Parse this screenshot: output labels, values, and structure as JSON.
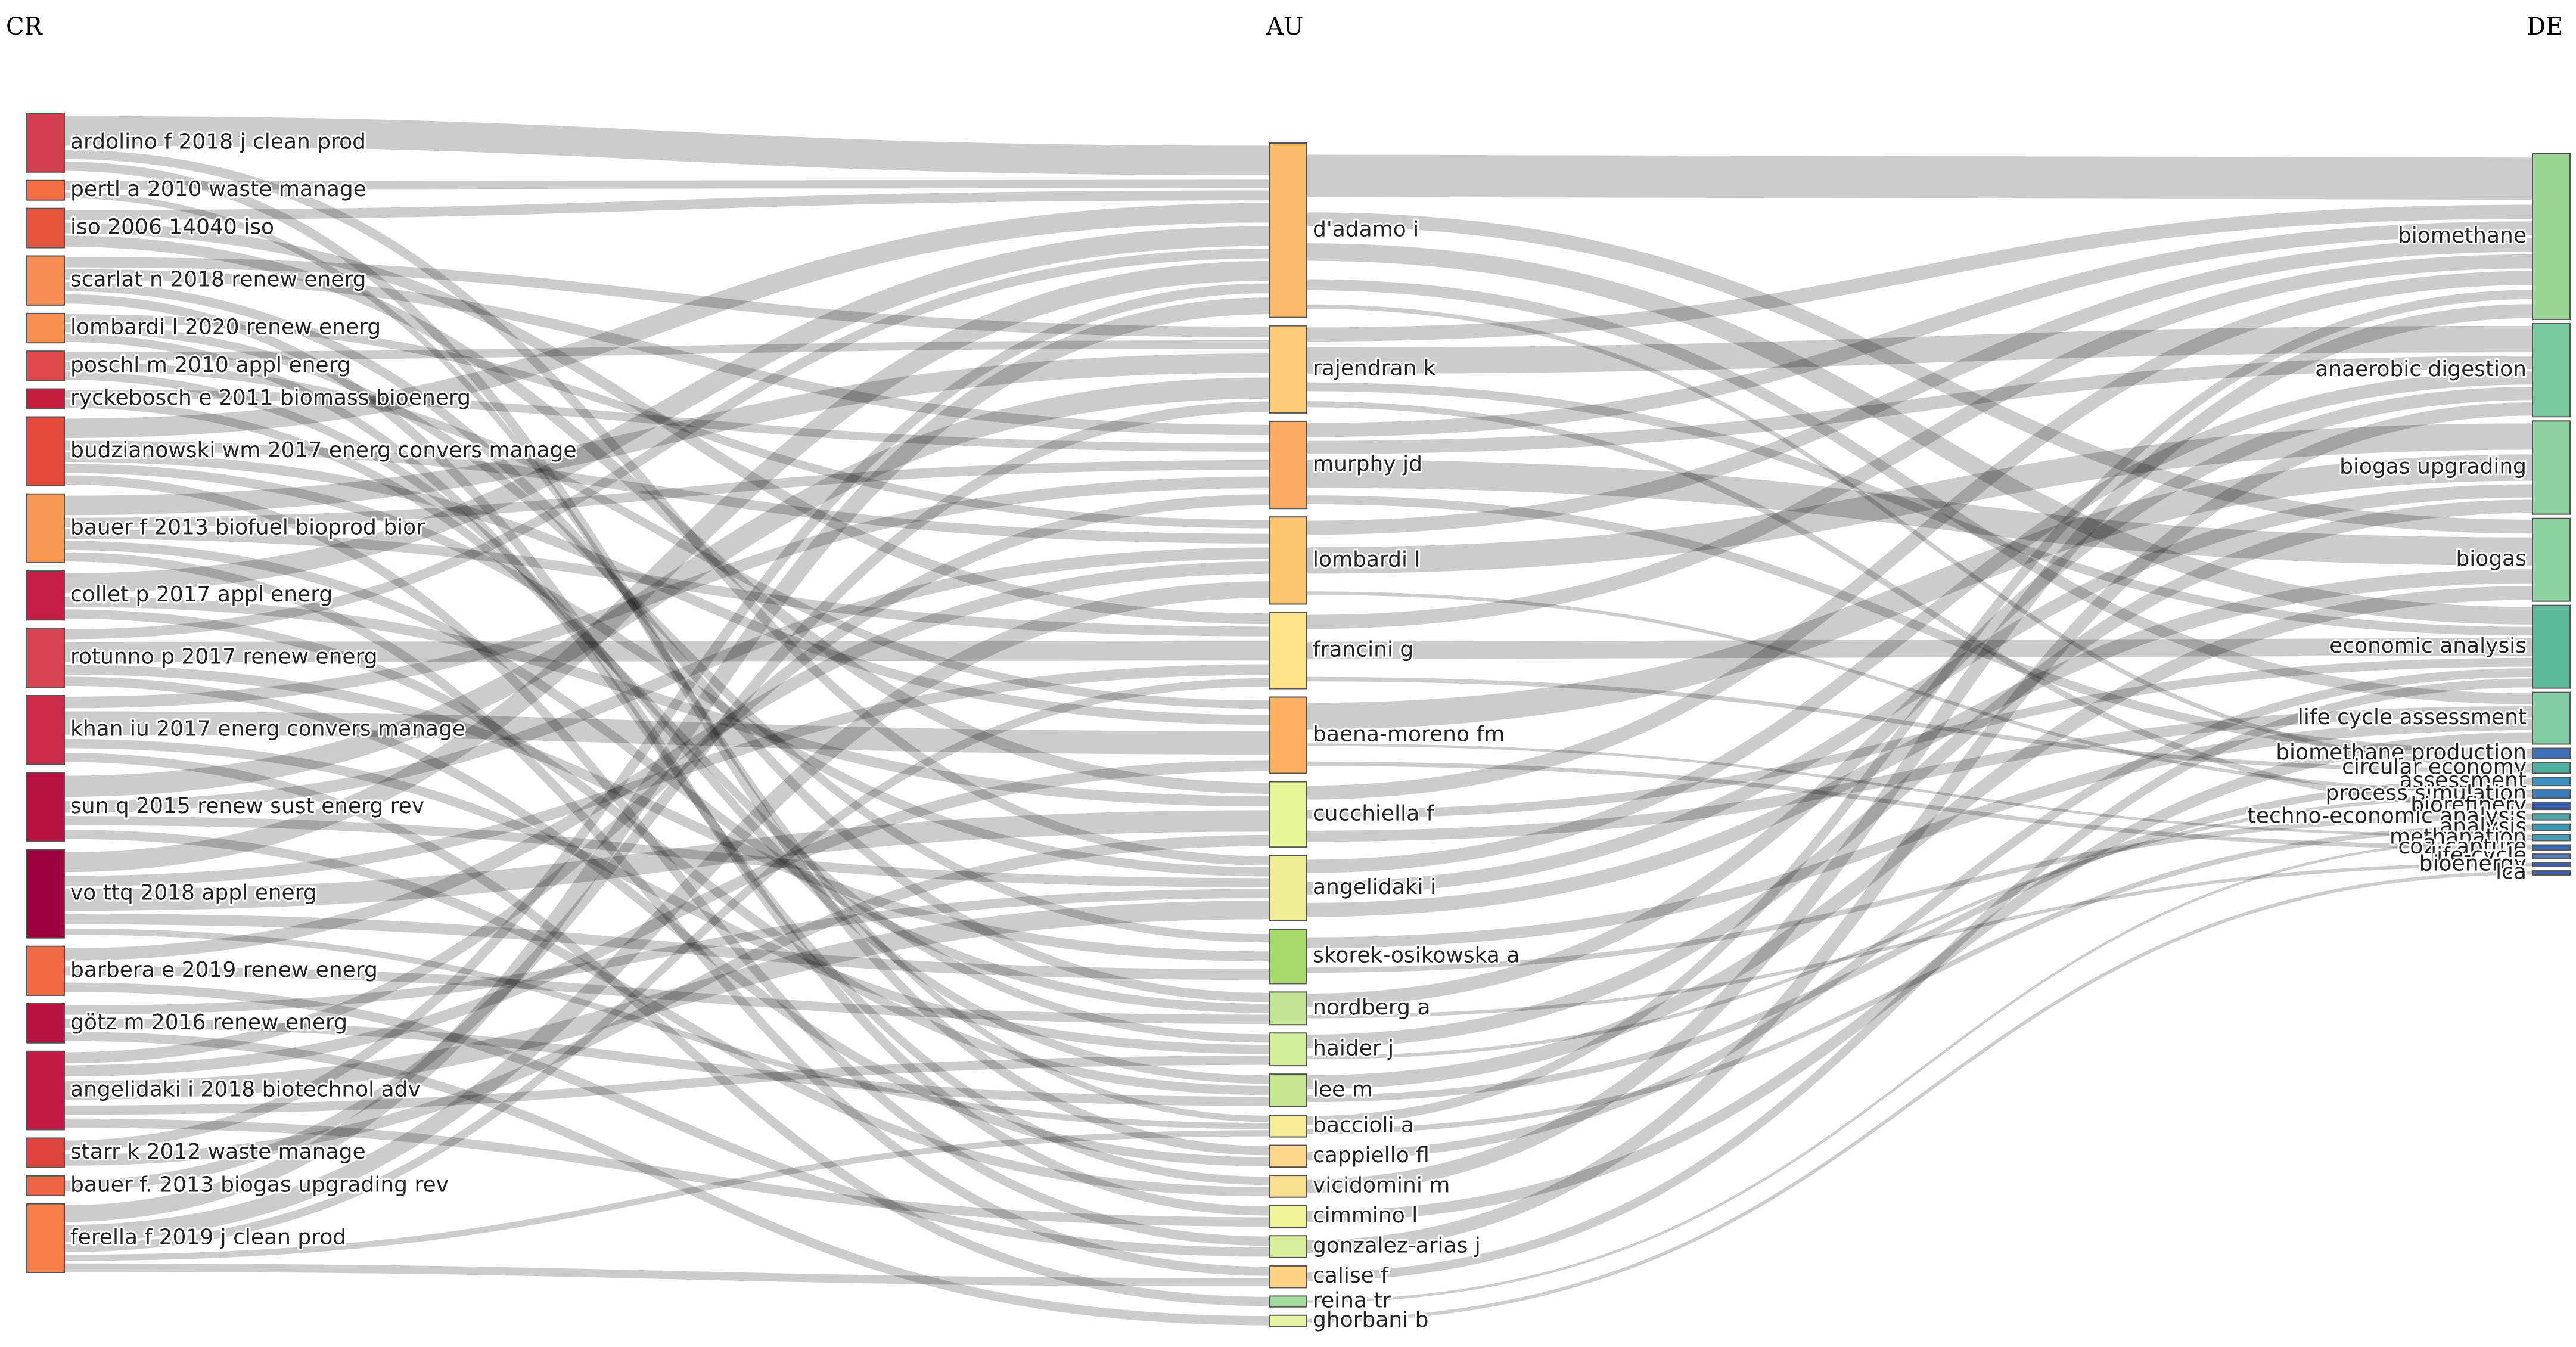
{
  "chart_data": {
    "type": "sankey",
    "columns": [
      "CR",
      "AU",
      "DE"
    ],
    "nodes": {
      "CR": [
        {
          "label": "ardolino f 2018 j clean prod",
          "value": 6,
          "color": "#d53e4f"
        },
        {
          "label": "pertl a 2010 waste manage",
          "value": 2,
          "color": "#f46d43"
        },
        {
          "label": "iso 2006 14040 iso",
          "value": 4,
          "color": "#e8553f"
        },
        {
          "label": "scarlat n 2018 renew energ",
          "value": 5,
          "color": "#f88d52"
        },
        {
          "label": "lombardi l 2020 renew energ",
          "value": 3,
          "color": "#f99153"
        },
        {
          "label": "poschl m 2010 appl energ",
          "value": 3,
          "color": "#e04a4a"
        },
        {
          "label": "ryckebosch e 2011 biomass bioenerg",
          "value": 2,
          "color": "#c51b3d"
        },
        {
          "label": "budzianowski wm 2017 energ convers manage",
          "value": 7,
          "color": "#e34a3b"
        },
        {
          "label": "bauer f 2013 biofuel bioprod bior",
          "value": 7,
          "color": "#f89a55"
        },
        {
          "label": "collet p 2017 appl energ",
          "value": 5,
          "color": "#c81d45"
        },
        {
          "label": "rotunno p 2017 renew energ",
          "value": 6,
          "color": "#d8454f"
        },
        {
          "label": "khan iu 2017 energ convers manage",
          "value": 7,
          "color": "#cc2a48"
        },
        {
          "label": "sun q 2015 renew sust energ rev",
          "value": 7,
          "color": "#b5123f"
        },
        {
          "label": "vo ttq 2018 appl energ",
          "value": 9,
          "color": "#9e0142"
        },
        {
          "label": "barbera e 2019 renew energ",
          "value": 5,
          "color": "#f06a44"
        },
        {
          "label": "götz m 2016 renew energ",
          "value": 4,
          "color": "#b8143f"
        },
        {
          "label": "angelidaki i 2018 biotechnol adv",
          "value": 8,
          "color": "#c21a44"
        },
        {
          "label": "starr k 2012 waste manage",
          "value": 3,
          "color": "#e0433f"
        },
        {
          "label": "bauer f. 2013 biogas upgrading rev",
          "value": 2,
          "color": "#ee6340"
        },
        {
          "label": "ferella f 2019 j clean prod",
          "value": 7,
          "color": "#f57e46"
        }
      ],
      "AU": [
        {
          "label": "d'adamo i",
          "value": 16,
          "color": "#fdba6b"
        },
        {
          "label": "rajendran k",
          "value": 8,
          "color": "#fdcb78"
        },
        {
          "label": "murphy jd",
          "value": 8,
          "color": "#fdaa60"
        },
        {
          "label": "lombardi l",
          "value": 8,
          "color": "#fdc470"
        },
        {
          "label": "francini g",
          "value": 7,
          "color": "#fee28a"
        },
        {
          "label": "baena-moreno fm",
          "value": 7,
          "color": "#fdae61"
        },
        {
          "label": "cucchiella f",
          "value": 6,
          "color": "#e6f598"
        },
        {
          "label": "angelidaki i",
          "value": 6,
          "color": "#f0ec95"
        },
        {
          "label": "skorek-osikowska a",
          "value": 5,
          "color": "#a6d96a"
        },
        {
          "label": "nordberg a",
          "value": 3,
          "color": "#c2e394"
        },
        {
          "label": "haider j",
          "value": 3,
          "color": "#d3ee9b"
        },
        {
          "label": "lee m",
          "value": 3,
          "color": "#c6e790"
        },
        {
          "label": "baccioli a",
          "value": 2,
          "color": "#f5eb94"
        },
        {
          "label": "cappiello fl",
          "value": 2,
          "color": "#fdd88c"
        },
        {
          "label": "vicidomini m",
          "value": 2,
          "color": "#fbdf91"
        },
        {
          "label": "cimmino l",
          "value": 2,
          "color": "#edf59c"
        },
        {
          "label": "gonzalez-arias j",
          "value": 2,
          "color": "#d8ef9b"
        },
        {
          "label": "calise f",
          "value": 2,
          "color": "#fdd383"
        },
        {
          "label": "reina tr",
          "value": 1,
          "color": "#a4dca0"
        },
        {
          "label": "ghorbani b",
          "value": 1,
          "color": "#e6f3a0"
        }
      ],
      "DE": [
        {
          "label": "biomethane",
          "value": 16,
          "color": "#99d594"
        },
        {
          "label": "anaerobic digestion",
          "value": 9,
          "color": "#78c99b"
        },
        {
          "label": "biogas upgrading",
          "value": 9,
          "color": "#8fd2a0"
        },
        {
          "label": "biogas",
          "value": 8,
          "color": "#8dd3a0"
        },
        {
          "label": "economic analysis",
          "value": 8,
          "color": "#5cb99a"
        },
        {
          "label": "life cycle assessment",
          "value": 5,
          "color": "#82cca5"
        },
        {
          "label": "biomethane production",
          "value": 1,
          "color": "#3e6fb8"
        },
        {
          "label": "circular economy",
          "value": 1,
          "color": "#4fb0a0"
        },
        {
          "label": "assessment",
          "value": 0.8,
          "color": "#3d8fbd"
        },
        {
          "label": "process simulation",
          "value": 0.8,
          "color": "#3a7dbb"
        },
        {
          "label": "biorefinery",
          "value": 0.7,
          "color": "#3b5eae"
        },
        {
          "label": "techno-economic analysis",
          "value": 0.6,
          "color": "#4fa7a8"
        },
        {
          "label": "analysis",
          "value": 0.6,
          "color": "#3a98b2"
        },
        {
          "label": "methanation",
          "value": 0.6,
          "color": "#4a9bb7"
        },
        {
          "label": "co2-capture",
          "value": 0.5,
          "color": "#3b6cb3"
        },
        {
          "label": "life-cycle",
          "value": 0.4,
          "color": "#4d7fbf"
        },
        {
          "label": "bioenergy",
          "value": 0.4,
          "color": "#4466b4"
        },
        {
          "label": "lca",
          "value": 0.4,
          "color": "#3d5aa8"
        }
      ]
    },
    "links_cr_au": [
      {
        "from": 0,
        "to": 0,
        "w": 3
      },
      {
        "from": 0,
        "to": 7,
        "w": 1
      },
      {
        "from": 0,
        "to": 13,
        "w": 1
      },
      {
        "from": 1,
        "to": 0,
        "w": 1
      },
      {
        "from": 1,
        "to": 12,
        "w": 1
      },
      {
        "from": 2,
        "to": 0,
        "w": 1
      },
      {
        "from": 2,
        "to": 4,
        "w": 1
      },
      {
        "from": 2,
        "to": 6,
        "w": 1
      },
      {
        "from": 3,
        "to": 2,
        "w": 1
      },
      {
        "from": 3,
        "to": 1,
        "w": 1
      },
      {
        "from": 3,
        "to": 9,
        "w": 1
      },
      {
        "from": 3,
        "to": 15,
        "w": 1
      },
      {
        "from": 4,
        "to": 3,
        "w": 1
      },
      {
        "from": 4,
        "to": 8,
        "w": 1
      },
      {
        "from": 4,
        "to": 14,
        "w": 1
      },
      {
        "from": 5,
        "to": 5,
        "w": 1
      },
      {
        "from": 5,
        "to": 11,
        "w": 1
      },
      {
        "from": 5,
        "to": 1,
        "w": 1
      },
      {
        "from": 6,
        "to": 2,
        "w": 1
      },
      {
        "from": 6,
        "to": 10,
        "w": 1
      },
      {
        "from": 7,
        "to": 0,
        "w": 2
      },
      {
        "from": 7,
        "to": 3,
        "w": 1
      },
      {
        "from": 7,
        "to": 7,
        "w": 1
      },
      {
        "from": 7,
        "to": 16,
        "w": 1
      },
      {
        "from": 7,
        "to": 5,
        "w": 1
      },
      {
        "from": 8,
        "to": 1,
        "w": 2
      },
      {
        "from": 8,
        "to": 2,
        "w": 1
      },
      {
        "from": 8,
        "to": 9,
        "w": 1
      },
      {
        "from": 8,
        "to": 4,
        "w": 1
      },
      {
        "from": 8,
        "to": 17,
        "w": 1
      },
      {
        "from": 9,
        "to": 0,
        "w": 2
      },
      {
        "from": 9,
        "to": 6,
        "w": 1
      },
      {
        "from": 9,
        "to": 11,
        "w": 1
      },
      {
        "from": 10,
        "to": 4,
        "w": 2
      },
      {
        "from": 10,
        "to": 0,
        "w": 1
      },
      {
        "from": 10,
        "to": 8,
        "w": 1
      },
      {
        "from": 10,
        "to": 13,
        "w": 1
      },
      {
        "from": 11,
        "to": 5,
        "w": 2
      },
      {
        "from": 11,
        "to": 2,
        "w": 1
      },
      {
        "from": 11,
        "to": 10,
        "w": 1
      },
      {
        "from": 11,
        "to": 18,
        "w": 1
      },
      {
        "from": 12,
        "to": 1,
        "w": 2
      },
      {
        "from": 12,
        "to": 3,
        "w": 1
      },
      {
        "from": 12,
        "to": 7,
        "w": 1
      },
      {
        "from": 12,
        "to": 14,
        "w": 1
      },
      {
        "from": 13,
        "to": 0,
        "w": 2
      },
      {
        "from": 13,
        "to": 4,
        "w": 1
      },
      {
        "from": 13,
        "to": 6,
        "w": 2
      },
      {
        "from": 13,
        "to": 12,
        "w": 1
      },
      {
        "from": 13,
        "to": 8,
        "w": 1
      },
      {
        "from": 14,
        "to": 3,
        "w": 1
      },
      {
        "from": 14,
        "to": 9,
        "w": 1
      },
      {
        "from": 14,
        "to": 16,
        "w": 1
      },
      {
        "from": 15,
        "to": 7,
        "w": 1
      },
      {
        "from": 15,
        "to": 11,
        "w": 1
      },
      {
        "from": 15,
        "to": 19,
        "w": 1
      },
      {
        "from": 16,
        "to": 7,
        "w": 2
      },
      {
        "from": 16,
        "to": 2,
        "w": 1
      },
      {
        "from": 16,
        "to": 5,
        "w": 1
      },
      {
        "from": 16,
        "to": 15,
        "w": 1
      },
      {
        "from": 16,
        "to": 10,
        "w": 1
      },
      {
        "from": 17,
        "to": 0,
        "w": 1
      },
      {
        "from": 17,
        "to": 6,
        "w": 1
      },
      {
        "from": 18,
        "to": 1,
        "w": 1
      },
      {
        "from": 19,
        "to": 0,
        "w": 2
      },
      {
        "from": 19,
        "to": 3,
        "w": 2
      },
      {
        "from": 19,
        "to": 4,
        "w": 1
      },
      {
        "from": 19,
        "to": 17,
        "w": 1
      },
      {
        "from": 19,
        "to": 12,
        "w": 1
      }
    ],
    "links_au_de": [
      {
        "from": 0,
        "to": 0,
        "w": 3
      },
      {
        "from": 0,
        "to": 4,
        "w": 2
      },
      {
        "from": 0,
        "to": 5,
        "w": 1
      },
      {
        "from": 0,
        "to": 7,
        "w": 1
      },
      {
        "from": 0,
        "to": 3,
        "w": 1
      },
      {
        "from": 1,
        "to": 1,
        "w": 2
      },
      {
        "from": 1,
        "to": 0,
        "w": 1
      },
      {
        "from": 1,
        "to": 10,
        "w": 1
      },
      {
        "from": 1,
        "to": 4,
        "w": 1
      },
      {
        "from": 2,
        "to": 3,
        "w": 2
      },
      {
        "from": 2,
        "to": 1,
        "w": 1
      },
      {
        "from": 2,
        "to": 0,
        "w": 1
      },
      {
        "from": 2,
        "to": 6,
        "w": 1
      },
      {
        "from": 3,
        "to": 2,
        "w": 2
      },
      {
        "from": 3,
        "to": 0,
        "w": 1
      },
      {
        "from": 3,
        "to": 9,
        "w": 1
      },
      {
        "from": 4,
        "to": 4,
        "w": 2
      },
      {
        "from": 4,
        "to": 0,
        "w": 1
      },
      {
        "from": 4,
        "to": 7,
        "w": 1
      },
      {
        "from": 5,
        "to": 2,
        "w": 2
      },
      {
        "from": 5,
        "to": 14,
        "w": 1
      },
      {
        "from": 5,
        "to": 13,
        "w": 1
      },
      {
        "from": 6,
        "to": 4,
        "w": 1
      },
      {
        "from": 6,
        "to": 5,
        "w": 1
      },
      {
        "from": 6,
        "to": 0,
        "w": 1
      },
      {
        "from": 7,
        "to": 1,
        "w": 1
      },
      {
        "from": 7,
        "to": 3,
        "w": 1
      },
      {
        "from": 7,
        "to": 2,
        "w": 1
      },
      {
        "from": 8,
        "to": 5,
        "w": 1
      },
      {
        "from": 8,
        "to": 11,
        "w": 1
      },
      {
        "from": 9,
        "to": 1,
        "w": 1
      },
      {
        "from": 9,
        "to": 16,
        "w": 1
      },
      {
        "from": 10,
        "to": 2,
        "w": 1
      },
      {
        "from": 10,
        "to": 9,
        "w": 1
      },
      {
        "from": 11,
        "to": 3,
        "w": 1
      },
      {
        "from": 11,
        "to": 8,
        "w": 1
      },
      {
        "from": 12,
        "to": 0,
        "w": 1
      },
      {
        "from": 12,
        "to": 12,
        "w": 1
      },
      {
        "from": 13,
        "to": 4,
        "w": 1
      },
      {
        "from": 14,
        "to": 0,
        "w": 1
      },
      {
        "from": 15,
        "to": 5,
        "w": 1
      },
      {
        "from": 16,
        "to": 1,
        "w": 1
      },
      {
        "from": 17,
        "to": 4,
        "w": 1
      },
      {
        "from": 18,
        "to": 13,
        "w": 1
      },
      {
        "from": 19,
        "to": 17,
        "w": 1
      }
    ]
  }
}
